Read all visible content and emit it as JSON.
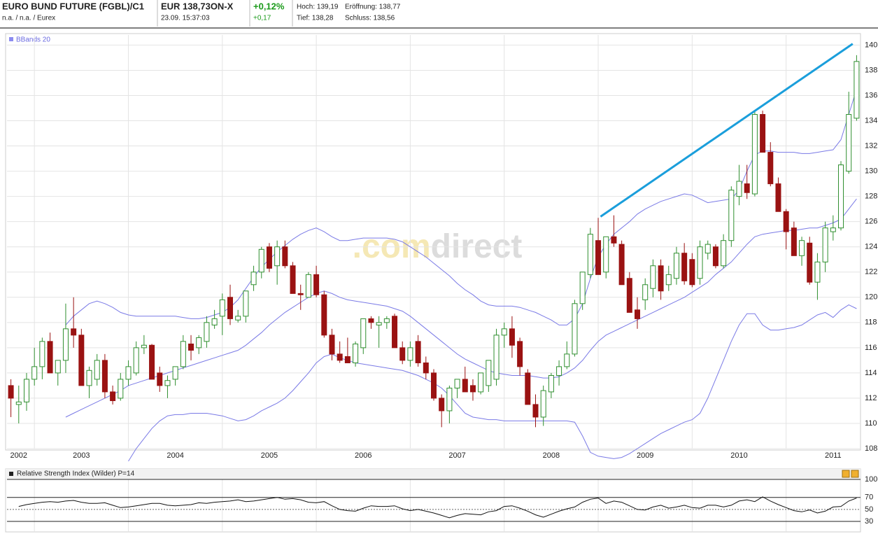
{
  "header": {
    "title": "EURO BUND FUTURE (FGBL)/C1",
    "exchange": "n.a. / n.a. / Eurex",
    "price": "EUR 138,73ON-X",
    "time": "23.09. 15:37:03",
    "change_pct": "+0,12%",
    "change": "+0,17",
    "high": "Hoch: 139,19",
    "open": "Eröffnung: 138,77",
    "low": "Tief: 138,28",
    "close": "Schluss: 138,56"
  },
  "chart_data": [
    {
      "type": "candlestick",
      "watermark": [
        ".com",
        "direct"
      ],
      "up_color": "#2f8f2f",
      "down_color": "#9a1212",
      "grid": true,
      "categories": [
        null,
        "2002",
        null,
        null,
        null,
        null,
        null,
        null,
        null,
        "2003",
        null,
        null,
        null,
        null,
        null,
        null,
        null,
        null,
        null,
        null,
        null,
        "2004",
        null,
        null,
        null,
        null,
        null,
        null,
        null,
        null,
        null,
        null,
        null,
        "2005",
        null,
        null,
        null,
        null,
        null,
        null,
        null,
        null,
        null,
        null,
        null,
        "2006",
        null,
        null,
        null,
        null,
        null,
        null,
        null,
        null,
        null,
        null,
        null,
        "2007",
        null,
        null,
        null,
        null,
        null,
        null,
        null,
        null,
        null,
        null,
        null,
        "2008",
        null,
        null,
        null,
        null,
        null,
        null,
        null,
        null,
        null,
        null,
        null,
        "2009",
        null,
        null,
        null,
        null,
        null,
        null,
        null,
        null,
        null,
        null,
        null,
        "2010",
        null,
        null,
        null,
        null,
        null,
        null,
        null,
        null,
        null,
        null,
        null,
        "2011",
        null,
        null,
        null
      ],
      "open": [
        113,
        111.5,
        111.7,
        113.5,
        114.5,
        116.5,
        114,
        115,
        117.5,
        117,
        113,
        113.5,
        115,
        112.5,
        112,
        113.5,
        114,
        116,
        116.2,
        114,
        113,
        113.5,
        114.5,
        116.3,
        116,
        116.5,
        117.8,
        118.5,
        120,
        118.2,
        118.5,
        121,
        122,
        124,
        122.5,
        124,
        122.5,
        120.3,
        120,
        121.8,
        120.2,
        117,
        115.5,
        115.3,
        114.8,
        116,
        118.3,
        117.8,
        118,
        118.5,
        116,
        115,
        116.5,
        114.8,
        114,
        112,
        111,
        112.8,
        113.5,
        113,
        112.5,
        113,
        113.5,
        117,
        117.5,
        116.5,
        114,
        111.5,
        110.5,
        112.5,
        113.8,
        114.5,
        115.5,
        119.5,
        121.8,
        124.5,
        122,
        124.8,
        124.2,
        121.5,
        119,
        119.8,
        120.7,
        122.5,
        121,
        121.5,
        123.5,
        123,
        121.5,
        123.5,
        124,
        122.5,
        124.5,
        128,
        129,
        128.2,
        134.5,
        131.5,
        129,
        126.8,
        125.5,
        123.3,
        124.3,
        121.2,
        122.8,
        125.2,
        125.5,
        130,
        134.2
      ],
      "high": [
        113.5,
        113,
        114,
        116,
        116.8,
        117.2,
        115,
        119.5,
        120,
        117.5,
        114.5,
        115.5,
        115.5,
        113,
        114,
        115,
        116.5,
        117,
        116.3,
        114.5,
        113.8,
        114.5,
        117,
        117,
        117,
        118.5,
        119,
        120.3,
        121,
        119,
        120.5,
        122.5,
        124,
        124.3,
        124.5,
        124.5,
        122.8,
        121,
        122,
        122.5,
        120.5,
        117.5,
        116.5,
        116.8,
        116.5,
        118.3,
        118.5,
        118.5,
        118.5,
        118.7,
        116.5,
        116.5,
        117,
        115.3,
        114.3,
        112.3,
        113,
        113.5,
        114.5,
        113.5,
        114,
        115,
        117.5,
        118,
        118.5,
        116.8,
        114.3,
        112.3,
        113,
        114,
        115,
        116.5,
        119.8,
        122,
        125.5,
        126.3,
        124.8,
        126.5,
        124.5,
        122,
        120,
        121.5,
        123,
        123,
        122.5,
        124,
        124.3,
        123.5,
        124.5,
        124.5,
        124.2,
        125,
        128.8,
        130.5,
        130.5,
        134.8,
        134.8,
        132.3,
        129.5,
        127,
        126,
        124.8,
        124.8,
        123.5,
        126,
        126.5,
        130.8,
        136.3,
        139.2
      ],
      "low": [
        110.5,
        110,
        111,
        113,
        113.5,
        114,
        113,
        114,
        116,
        113,
        112,
        113,
        112,
        111.5,
        111.8,
        113,
        113.8,
        115.5,
        113.5,
        112.5,
        112,
        113,
        114.3,
        115,
        115.5,
        116,
        117.5,
        117,
        117.8,
        118,
        118,
        120.5,
        121.5,
        122,
        121,
        122.3,
        120.3,
        119,
        120,
        120,
        116.8,
        115,
        114.8,
        114.8,
        114.5,
        115.5,
        117.5,
        116,
        117.5,
        116,
        114.7,
        114.5,
        114.5,
        113.5,
        111.8,
        109.7,
        110,
        112,
        112.5,
        111.8,
        112.3,
        112.5,
        113,
        116,
        115.2,
        113.8,
        111.5,
        109.7,
        109.8,
        112,
        113,
        114.3,
        115.3,
        119,
        121.5,
        121.8,
        121.5,
        124,
        121,
        118.8,
        117.5,
        119,
        120,
        119.8,
        120.5,
        121,
        121,
        120.8,
        121,
        123,
        122.3,
        122.3,
        124,
        127.3,
        127.8,
        128,
        131.5,
        128.8,
        126.8,
        123.8,
        123.3,
        122.5,
        121,
        119.8,
        122,
        124.5,
        125.3,
        129.8,
        134
      ],
      "close": [
        112,
        111.7,
        113.5,
        114.5,
        116.5,
        114,
        115,
        117.5,
        117,
        113,
        114.2,
        115,
        112.5,
        111.8,
        113.5,
        114.5,
        116,
        116.2,
        113.5,
        113,
        113.4,
        114.5,
        116.5,
        115.8,
        116.8,
        118,
        118.3,
        119.8,
        118.3,
        118.5,
        120.5,
        122,
        123.8,
        122.3,
        124,
        122.5,
        120.3,
        120.2,
        121.8,
        120.2,
        117,
        115.5,
        115,
        114.8,
        116.3,
        118.3,
        118,
        118,
        118.3,
        116,
        115,
        116,
        114.8,
        114,
        112,
        111,
        112.8,
        113.5,
        112.5,
        112.5,
        114,
        115,
        117,
        117.5,
        116.2,
        114.5,
        111.5,
        110.5,
        112.6,
        113.8,
        114.5,
        115.5,
        119.5,
        122,
        125,
        121.8,
        124.8,
        124.3,
        121,
        118.8,
        118.3,
        121,
        122.5,
        120.5,
        121.8,
        123.5,
        121.3,
        121,
        124,
        124.2,
        122.5,
        124.5,
        128.5,
        129.2,
        128.3,
        134.5,
        131.5,
        129,
        126.8,
        125.2,
        123.3,
        124.5,
        121.2,
        122.8,
        125.5,
        125.5,
        130.5,
        134.5,
        138.7
      ],
      "bollinger": {
        "label": "BBands 20",
        "color": "#7a7ae6",
        "upper": [
          null,
          null,
          null,
          null,
          null,
          null,
          null,
          117.8,
          118.5,
          119,
          119.5,
          119.7,
          119.5,
          119.2,
          118.8,
          118.6,
          118.5,
          118.5,
          118.5,
          118.5,
          118.5,
          118.5,
          118.4,
          118.3,
          118.3,
          118.4,
          118.6,
          118.8,
          119.2,
          119.8,
          120.7,
          121.6,
          122.4,
          123,
          123.6,
          124.1,
          124.6,
          125,
          125.3,
          125.5,
          125.2,
          124.8,
          124.5,
          124.5,
          124.6,
          124.7,
          124.7,
          124.7,
          124.7,
          124.6,
          124.4,
          124,
          123.6,
          123.2,
          122.7,
          122.2,
          121.7,
          121.1,
          120.6,
          120.2,
          119.7,
          119.4,
          119.3,
          119.3,
          119.3,
          119.2,
          119,
          118.8,
          118.5,
          118.2,
          117.8,
          117.8,
          118.3,
          119.5,
          121.5,
          123.2,
          124.2,
          125,
          125.5,
          126,
          126.6,
          127,
          127.3,
          127.6,
          127.8,
          128,
          128.2,
          128.1,
          127.8,
          127.5,
          127.6,
          127.7,
          127.8,
          128.5,
          130,
          131.3,
          131.6,
          131.6,
          131.5,
          131.5,
          131.5,
          131.4,
          131.4,
          131.5,
          131.6,
          131.7,
          132.5,
          134.5,
          136.5
        ],
        "middle": [
          null,
          null,
          null,
          null,
          null,
          null,
          null,
          110.5,
          110.8,
          111.1,
          111.4,
          111.7,
          112,
          112.3,
          112.6,
          113,
          113.2,
          113.4,
          113.6,
          113.8,
          114,
          114.2,
          114.4,
          114.6,
          114.8,
          115,
          115.2,
          115.4,
          115.6,
          115.8,
          116.2,
          116.7,
          117.2,
          117.8,
          118.3,
          118.8,
          119.2,
          119.6,
          120,
          120.3,
          120.5,
          120.3,
          120,
          119.8,
          119.7,
          119.6,
          119.5,
          119.4,
          119.3,
          119.1,
          118.9,
          118.5,
          118,
          117.5,
          117,
          116.5,
          116,
          115.5,
          115.1,
          114.8,
          114.5,
          114.2,
          114,
          113.9,
          113.8,
          113.8,
          113.8,
          113.7,
          113.6,
          113.6,
          113.7,
          114,
          114.4,
          115,
          115.8,
          116.5,
          117,
          117.3,
          117.6,
          117.9,
          118.2,
          118.5,
          118.8,
          119.1,
          119.4,
          119.7,
          120,
          120.4,
          120.8,
          121.2,
          121.8,
          122.3,
          122.8,
          123.5,
          124.2,
          124.8,
          125,
          125.1,
          125.2,
          125.3,
          125.3,
          125.4,
          125.5,
          125.5,
          125.7,
          125.9,
          126.2,
          127,
          127.8
        ],
        "lower": [
          null,
          null,
          null,
          null,
          null,
          null,
          null,
          null,
          null,
          null,
          null,
          null,
          null,
          null,
          null,
          107,
          108,
          108.8,
          109.6,
          110.2,
          110.6,
          110.7,
          110.7,
          110.8,
          110.8,
          110.8,
          110.7,
          110.6,
          110.4,
          110.2,
          110.3,
          110.6,
          111,
          111.3,
          111.6,
          112,
          112.6,
          113.3,
          114,
          114.8,
          115.3,
          115.5,
          115.2,
          115,
          114.8,
          114.7,
          114.6,
          114.5,
          114.4,
          114.3,
          114.2,
          114,
          113.8,
          113.5,
          113.2,
          112.8,
          112.2,
          111.5,
          110.8,
          110.5,
          110.4,
          110.3,
          110.3,
          110.2,
          110.2,
          110.2,
          110.2,
          110.2,
          110.2,
          110.2,
          110.2,
          110.2,
          110.1,
          109,
          107.7,
          107.4,
          107.3,
          107.2,
          107.3,
          107.6,
          108,
          108.4,
          108.8,
          109.2,
          109.5,
          109.8,
          110.1,
          110.3,
          110.8,
          112,
          113.5,
          115,
          116.5,
          117.8,
          118.7,
          118.7,
          117.8,
          117.4,
          117.4,
          117.5,
          117.6,
          117.8,
          118.2,
          118.6,
          118.8,
          118.4,
          119,
          119.4,
          119.1
        ]
      },
      "trendline": {
        "color": "#1a9edb",
        "values": [
          126.4,
          140.1
        ]
      },
      "ylim": [
        108,
        140.8
      ],
      "yticks": [
        108,
        110,
        112,
        114,
        116,
        118,
        120,
        122,
        124,
        126,
        128,
        130,
        132,
        134,
        136,
        138,
        140
      ]
    },
    {
      "type": "line",
      "title": "Relative Strength Index (Wilder) P=14",
      "color": "#111111",
      "values": [
        null,
        55,
        58,
        60,
        62,
        63,
        62,
        64,
        65,
        62,
        60,
        60,
        61,
        57,
        53,
        54,
        56,
        58,
        60,
        60,
        57,
        56,
        57,
        58,
        61,
        60,
        62,
        63,
        64,
        66,
        63,
        64,
        66,
        68,
        70,
        67,
        68,
        66,
        62,
        61,
        63,
        56,
        50,
        48,
        47,
        52,
        56,
        55,
        55,
        56,
        51,
        48,
        50,
        47,
        44,
        40,
        36,
        40,
        43,
        42,
        41,
        46,
        48,
        55,
        56,
        52,
        47,
        41,
        37,
        42,
        47,
        51,
        54,
        62,
        67,
        69,
        60,
        64,
        62,
        56,
        50,
        49,
        54,
        57,
        52,
        54,
        57,
        53,
        52,
        57,
        57,
        54,
        57,
        64,
        66,
        63,
        71,
        64,
        58,
        53,
        48,
        46,
        49,
        44,
        47,
        54,
        55,
        64,
        69
      ],
      "ylim": [
        12.5,
        100
      ],
      "yticks": [
        30,
        50,
        70,
        100
      ]
    }
  ]
}
